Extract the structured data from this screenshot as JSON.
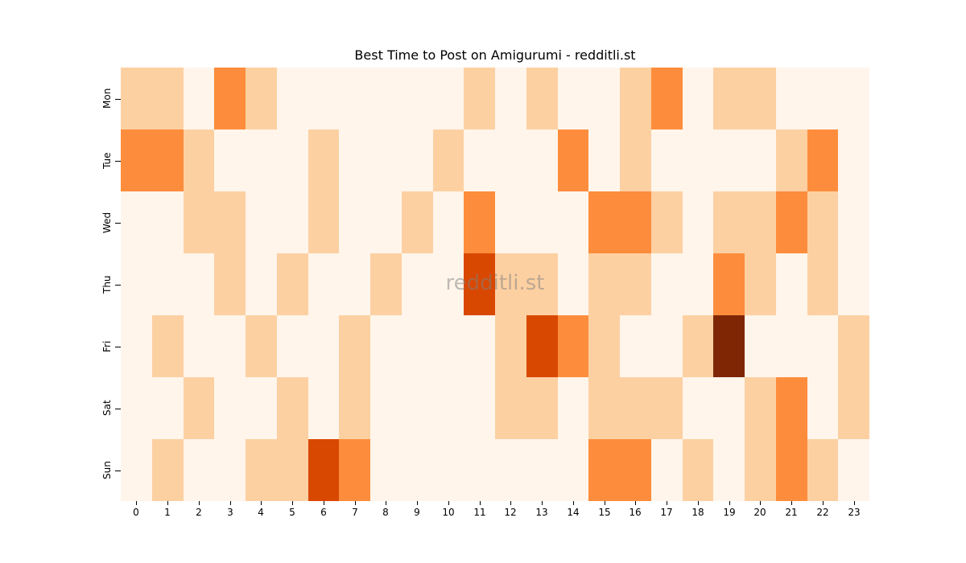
{
  "chart_data": {
    "type": "heatmap",
    "title": "Best Time to Post on Amigurumi - redditli.st",
    "xlabel": "",
    "ylabel": "",
    "x": [
      "0",
      "1",
      "2",
      "3",
      "4",
      "5",
      "6",
      "7",
      "8",
      "9",
      "10",
      "11",
      "12",
      "13",
      "14",
      "15",
      "16",
      "17",
      "18",
      "19",
      "20",
      "21",
      "22",
      "23"
    ],
    "y": [
      "Mon",
      "Tue",
      "Wed",
      "Thu",
      "Fri",
      "Sat",
      "Sun"
    ],
    "colormap": "Oranges",
    "level_colors": [
      "#fff5eb",
      "#fdd0a2",
      "#fd8d3c",
      "#d94801",
      "#7f2704"
    ],
    "values": [
      [
        1,
        1,
        0,
        2,
        1,
        0,
        0,
        0,
        0,
        0,
        0,
        1,
        0,
        1,
        0,
        0,
        1,
        2,
        0,
        1,
        1,
        0,
        0,
        0
      ],
      [
        2,
        2,
        1,
        0,
        0,
        0,
        1,
        0,
        0,
        0,
        1,
        0,
        0,
        0,
        2,
        0,
        1,
        0,
        0,
        0,
        0,
        1,
        2,
        0
      ],
      [
        0,
        0,
        1,
        1,
        0,
        0,
        1,
        0,
        0,
        1,
        0,
        2,
        0,
        0,
        0,
        2,
        2,
        1,
        0,
        1,
        1,
        2,
        1,
        0
      ],
      [
        0,
        0,
        0,
        1,
        0,
        1,
        0,
        0,
        1,
        0,
        0,
        3,
        1,
        1,
        0,
        1,
        1,
        0,
        0,
        2,
        1,
        0,
        1,
        0
      ],
      [
        0,
        1,
        0,
        0,
        1,
        0,
        0,
        1,
        0,
        0,
        0,
        0,
        1,
        3,
        2,
        1,
        0,
        0,
        1,
        4,
        0,
        0,
        0,
        1
      ],
      [
        0,
        0,
        1,
        0,
        0,
        1,
        0,
        1,
        0,
        0,
        0,
        0,
        1,
        1,
        0,
        1,
        1,
        1,
        0,
        0,
        1,
        2,
        0,
        1
      ],
      [
        0,
        1,
        0,
        0,
        1,
        1,
        3,
        2,
        0,
        0,
        0,
        0,
        0,
        0,
        0,
        2,
        2,
        0,
        1,
        0,
        1,
        2,
        1,
        0
      ]
    ],
    "colorbar": false,
    "grid": false,
    "watermark": "redditli.st"
  }
}
